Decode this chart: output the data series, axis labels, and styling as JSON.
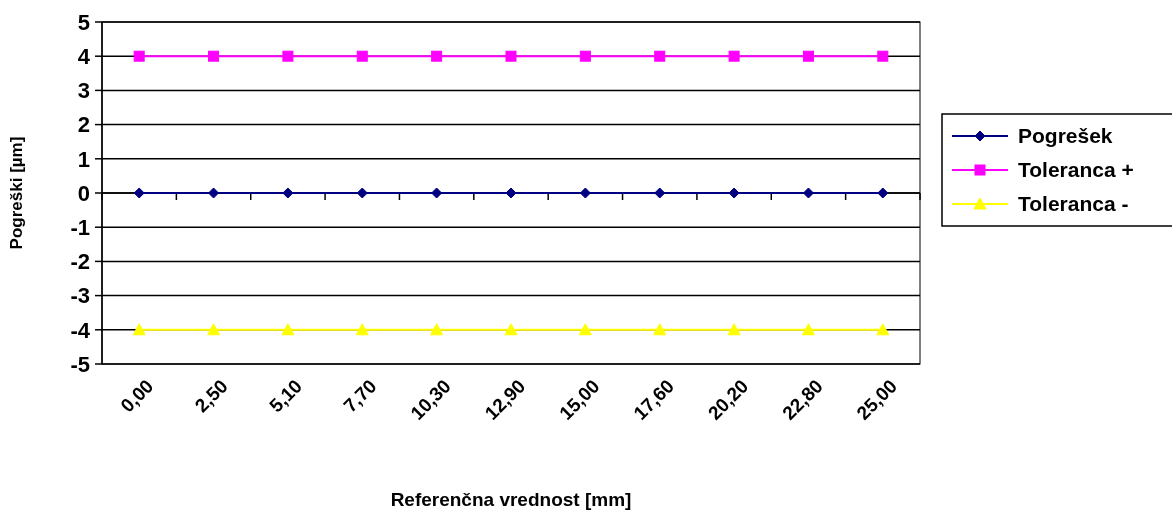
{
  "chart_data": {
    "type": "line",
    "xlabel": "Referenčna vrednost [mm]",
    "ylabel": "Pogreški [µm]",
    "categories": [
      "0,00",
      "2,50",
      "5,10",
      "7,70",
      "10,30",
      "12,90",
      "15,00",
      "17,60",
      "20,20",
      "22,80",
      "25,00"
    ],
    "series": [
      {
        "name": "Pogrešek",
        "color": "#000080",
        "marker": "diamond",
        "values": [
          0,
          0,
          0,
          0,
          0,
          0,
          0,
          0,
          0,
          0,
          0
        ]
      },
      {
        "name": "Toleranca +",
        "color": "#ff00ff",
        "marker": "square",
        "values": [
          4,
          4,
          4,
          4,
          4,
          4,
          4,
          4,
          4,
          4,
          4
        ]
      },
      {
        "name": "Toleranca -",
        "color": "#ffff00",
        "marker": "triangle",
        "values": [
          -4,
          -4,
          -4,
          -4,
          -4,
          -4,
          -4,
          -4,
          -4,
          -4,
          -4
        ]
      }
    ],
    "ylim": [
      -5,
      5
    ],
    "yticks": [
      -5,
      -4,
      -3,
      -2,
      -1,
      0,
      1,
      2,
      3,
      4,
      5
    ],
    "grid": "y",
    "legend": "right"
  }
}
